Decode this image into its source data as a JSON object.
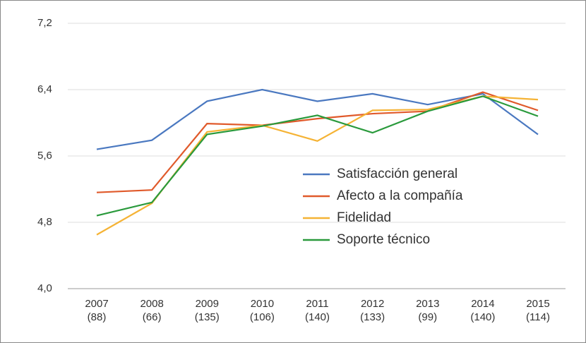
{
  "chart_data": {
    "type": "line",
    "categories": [
      "2007 (88)",
      "2008 (66)",
      "2009 (135)",
      "2010 (106)",
      "2011 (140)",
      "2012 (133)",
      "2013 (99)",
      "2014 (140)",
      "2015 (114)"
    ],
    "series": [
      {
        "name": "Satisfacción general",
        "color": "#4a78c0",
        "values": [
          5.68,
          5.79,
          6.26,
          6.4,
          6.26,
          6.35,
          6.22,
          6.35,
          5.86
        ]
      },
      {
        "name": "Afecto a la compañía",
        "color": "#e05a2b",
        "values": [
          5.16,
          5.19,
          5.99,
          5.97,
          6.05,
          6.11,
          6.14,
          6.37,
          6.15
        ]
      },
      {
        "name": "Fidelidad",
        "color": "#f5b335",
        "values": [
          4.65,
          5.03,
          5.89,
          5.97,
          5.78,
          6.15,
          6.16,
          6.32,
          6.28
        ]
      },
      {
        "name": "Soporte técnico",
        "color": "#2a9a3c",
        "values": [
          4.88,
          5.04,
          5.86,
          5.96,
          6.09,
          5.88,
          6.14,
          6.32,
          6.08
        ]
      }
    ],
    "ylim": [
      4.0,
      7.2
    ],
    "yticks": [
      {
        "value": 4.0,
        "label": "4,0"
      },
      {
        "value": 4.8,
        "label": "4,8"
      },
      {
        "value": 5.6,
        "label": "5,6"
      },
      {
        "value": 6.4,
        "label": "6,4"
      },
      {
        "value": 7.2,
        "label": "7,2"
      }
    ],
    "grid": true,
    "legend": "center"
  }
}
